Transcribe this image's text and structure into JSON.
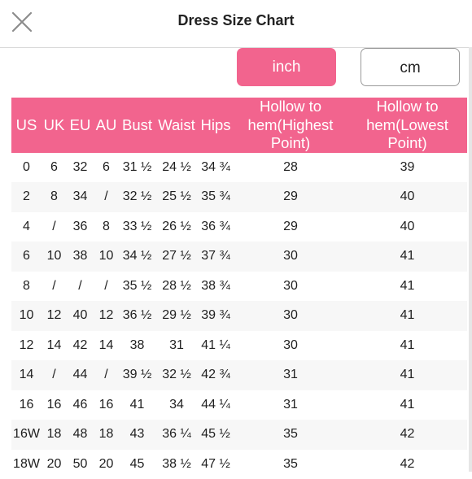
{
  "header": {
    "title": "Dress Size Chart"
  },
  "units": {
    "inch_label": "inch",
    "cm_label": "cm",
    "selected": "inch"
  },
  "colors": {
    "accent": "#f2648e",
    "header_text": "#ffffff",
    "row_alt": "#f7f7f7"
  },
  "table": {
    "headers": {
      "us": "US",
      "uk": "UK",
      "eu": "EU",
      "au": "AU",
      "bust": "Bust",
      "waist": "Waist",
      "hips": "Hips",
      "hollow_highest": "Hollow to hem(Highest Point)",
      "hollow_lowest": "Hollow to hem(Lowest Point)"
    },
    "rows": [
      {
        "us": "0",
        "uk": "6",
        "eu": "32",
        "au": "6",
        "bust": "31 ½",
        "waist": "24 ½",
        "hips": "34 ¾",
        "hollow_highest": "28",
        "hollow_lowest": "39"
      },
      {
        "us": "2",
        "uk": "8",
        "eu": "34",
        "au": "/",
        "bust": "32 ½",
        "waist": "25 ½",
        "hips": "35 ¾",
        "hollow_highest": "29",
        "hollow_lowest": "40"
      },
      {
        "us": "4",
        "uk": "/",
        "eu": "36",
        "au": "8",
        "bust": "33 ½",
        "waist": "26 ½",
        "hips": "36 ¾",
        "hollow_highest": "29",
        "hollow_lowest": "40"
      },
      {
        "us": "6",
        "uk": "10",
        "eu": "38",
        "au": "10",
        "bust": "34 ½",
        "waist": "27 ½",
        "hips": "37 ¾",
        "hollow_highest": "30",
        "hollow_lowest": "41"
      },
      {
        "us": "8",
        "uk": "/",
        "eu": "/",
        "au": "/",
        "bust": "35 ½",
        "waist": "28 ½",
        "hips": "38 ¾",
        "hollow_highest": "30",
        "hollow_lowest": "41"
      },
      {
        "us": "10",
        "uk": "12",
        "eu": "40",
        "au": "12",
        "bust": "36 ½",
        "waist": "29 ½",
        "hips": "39 ¾",
        "hollow_highest": "30",
        "hollow_lowest": "41"
      },
      {
        "us": "12",
        "uk": "14",
        "eu": "42",
        "au": "14",
        "bust": "38",
        "waist": "31",
        "hips": "41 ¼",
        "hollow_highest": "30",
        "hollow_lowest": "41"
      },
      {
        "us": "14",
        "uk": "/",
        "eu": "44",
        "au": "/",
        "bust": "39 ½",
        "waist": "32 ½",
        "hips": "42 ¾",
        "hollow_highest": "31",
        "hollow_lowest": "41"
      },
      {
        "us": "16",
        "uk": "16",
        "eu": "46",
        "au": "16",
        "bust": "41",
        "waist": "34",
        "hips": "44 ¼",
        "hollow_highest": "31",
        "hollow_lowest": "41"
      },
      {
        "us": "16W",
        "uk": "18",
        "eu": "48",
        "au": "18",
        "bust": "43",
        "waist": "36 ¼",
        "hips": "45 ½",
        "hollow_highest": "35",
        "hollow_lowest": "42"
      },
      {
        "us": "18W",
        "uk": "20",
        "eu": "50",
        "au": "20",
        "bust": "45",
        "waist": "38 ½",
        "hips": "47 ½",
        "hollow_highest": "35",
        "hollow_lowest": "42"
      }
    ]
  }
}
